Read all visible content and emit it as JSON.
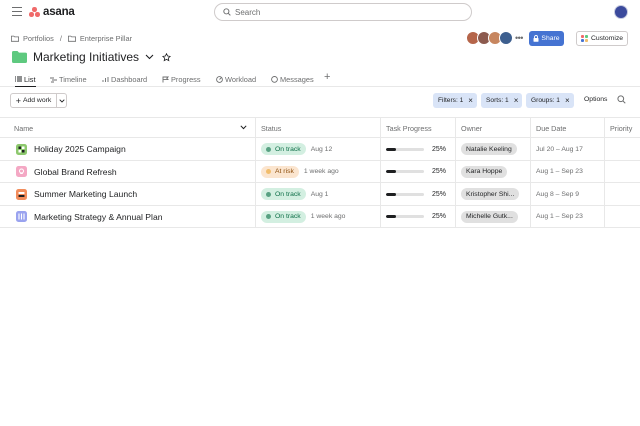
{
  "app": {
    "logo_text": "asana",
    "brand_color": "#f06a6a"
  },
  "search": {
    "placeholder": "Search"
  },
  "breadcrumb": {
    "items": [
      "Portfolios",
      "Enterprise Pillar"
    ],
    "separator": "/"
  },
  "project": {
    "title": "Marketing Initiatives",
    "folder_color": "#5ec97f"
  },
  "header": {
    "share_label": "Share",
    "customize_label": "Customize",
    "members_more": "•••"
  },
  "tabs": [
    {
      "label": "List",
      "icon": "list-icon",
      "active": true
    },
    {
      "label": "Timeline",
      "icon": "timeline-icon",
      "active": false
    },
    {
      "label": "Dashboard",
      "icon": "dashboard-icon",
      "active": false
    },
    {
      "label": "Progress",
      "icon": "progress-icon",
      "active": false
    },
    {
      "label": "Workload",
      "icon": "workload-icon",
      "active": false
    },
    {
      "label": "Messages",
      "icon": "messages-icon",
      "active": false
    }
  ],
  "toolbar": {
    "add_work_label": "Add work",
    "filters_label": "Filters: 1",
    "sorts_label": "Sorts: 1",
    "groups_label": "Groups: 1",
    "options_label": "Options"
  },
  "table": {
    "columns": [
      "Name",
      "Status",
      "Task Progress",
      "Owner",
      "Due Date",
      "Priority"
    ],
    "rows": [
      {
        "name": "Holiday 2025 Campaign",
        "icon_color": "#8dc86e",
        "status": "On track",
        "status_kind": "on-track",
        "status_time": "Aug 12",
        "progress": 0.25,
        "progress_label": "25%",
        "owner": "Natalie Keeling",
        "due": "Jul 20 – Aug 17"
      },
      {
        "name": "Global Brand Refresh",
        "icon_color": "#f4a8c4",
        "status": "At risk",
        "status_kind": "at-risk",
        "status_time": "1 week ago",
        "progress": 0.25,
        "progress_label": "25%",
        "owner": "Kara Hoppe",
        "due": "Aug 1 – Sep 23"
      },
      {
        "name": "Summer Marketing Launch",
        "icon_color": "#f28d5c",
        "status": "On track",
        "status_kind": "on-track",
        "status_time": "Aug 1",
        "progress": 0.25,
        "progress_label": "25%",
        "owner": "Kristopher Shi...",
        "due": "Aug 8 – Sep 9"
      },
      {
        "name": "Marketing Strategy & Annual Plan",
        "icon_color": "#9aa3ef",
        "status": "On track",
        "status_kind": "on-track",
        "status_time": "1 week ago",
        "progress": 0.25,
        "progress_label": "25%",
        "owner": "Michelle Gutk...",
        "due": "Aug 1 – Sep 23"
      }
    ]
  },
  "colors": {
    "on_track_bg": "#d3efe1",
    "on_track_dot": "#58a182",
    "on_track_text": "#0d6e47",
    "at_risk_bg": "#fbe5cf",
    "at_risk_dot": "#f1bd6c",
    "at_risk_text": "#8d4e0c",
    "share_bg": "#4573d2",
    "chip_bg": "#d9e4f7"
  }
}
